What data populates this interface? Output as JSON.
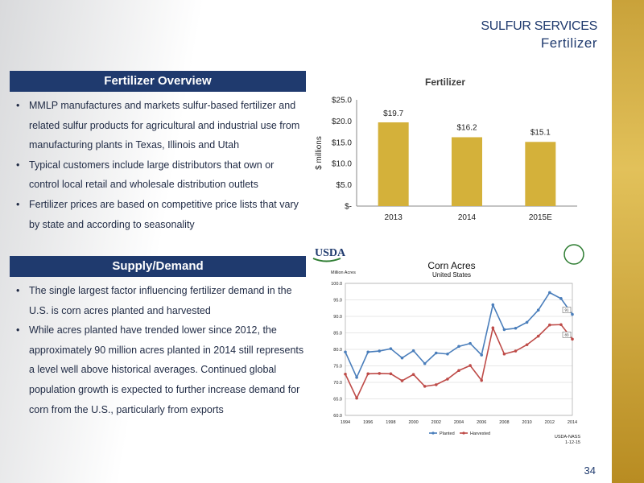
{
  "header": {
    "title": "SULFUR SERVICES",
    "subtitle": "Fertilizer"
  },
  "overview": {
    "heading": "Fertilizer Overview",
    "bullets": [
      "MMLP manufactures and markets sulfur-based fertilizer and related sulfur products for agricultural and industrial use from manufacturing plants in Texas, Illinois and Utah",
      "Typical customers include large distributors that own or control local retail and wholesale distribution outlets",
      "Fertilizer prices are based on competitive price lists that vary by state and according to seasonality"
    ]
  },
  "supply": {
    "heading": "Supply/Demand",
    "bullets": [
      "The single largest factor influencing fertilizer demand in the U.S. is corn acres planted and harvested",
      "While acres planted have trended lower since 2012, the approximately 90 million acres planted in 2014 still represents a level well above historical averages. Continued global population growth is expected to further increase demand for corn from the U.S., particularly from exports"
    ]
  },
  "page_number": "34",
  "colors": {
    "navy": "#1f3a6e",
    "gold": "#c9a23a",
    "bar": "#d4b13a",
    "planted": "#4a7ebb",
    "harvested": "#be4b48"
  },
  "chart_data": [
    {
      "type": "bar",
      "title": "Fertilizer",
      "ylabel": "$ millions",
      "categories": [
        "2013",
        "2014",
        "2015E"
      ],
      "values": [
        19.7,
        16.2,
        15.1
      ],
      "data_labels": [
        "$19.7",
        "$16.2",
        "$15.1"
      ],
      "ylim": [
        0,
        25
      ],
      "yticks": [
        0,
        5,
        10,
        15,
        20,
        25
      ],
      "ytick_labels": [
        "$-",
        "$5.0",
        "$10.0",
        "$15.0",
        "$20.0",
        "$25.0"
      ],
      "grid": false
    },
    {
      "type": "line",
      "title": "Corn Acres",
      "subtitle": "United States",
      "ylabel": "Million Acres",
      "logo": "USDA",
      "source": "USDA-NASS",
      "source_date": "1-12-15",
      "x": [
        1994,
        1995,
        1996,
        1997,
        1998,
        1999,
        2000,
        2001,
        2002,
        2003,
        2004,
        2005,
        2006,
        2007,
        2008,
        2009,
        2010,
        2011,
        2012,
        2013,
        2014
      ],
      "xtick_labels": [
        "1994",
        "1996",
        "1998",
        "2000",
        "2002",
        "2004",
        "2006",
        "2008",
        "2010",
        "2012",
        "2014"
      ],
      "ylim": [
        60,
        100
      ],
      "yticks": [
        60,
        65,
        70,
        75,
        80,
        85,
        90,
        95,
        100
      ],
      "ytick_labels": [
        "60.0",
        "65.0",
        "70.0",
        "75.0",
        "80.0",
        "85.0",
        "90.0",
        "95.0",
        "100.0"
      ],
      "series": [
        {
          "name": "Planted",
          "color": "#4a7ebb",
          "values": [
            79.2,
            71.5,
            79.2,
            79.5,
            80.2,
            77.4,
            79.6,
            75.7,
            78.9,
            78.6,
            80.9,
            81.8,
            78.3,
            93.5,
            86.0,
            86.4,
            88.2,
            91.9,
            97.2,
            95.4,
            90.6
          ]
        },
        {
          "name": "Harvested",
          "color": "#be4b48",
          "values": [
            72.5,
            65.2,
            72.6,
            72.7,
            72.6,
            70.5,
            72.4,
            68.8,
            69.3,
            71.0,
            73.6,
            75.1,
            70.6,
            86.5,
            78.6,
            79.5,
            81.4,
            84.0,
            87.4,
            87.5,
            83.1
          ]
        }
      ],
      "end_labels": [
        "91",
        "83"
      ],
      "legend": "bottom",
      "grid": true
    }
  ]
}
